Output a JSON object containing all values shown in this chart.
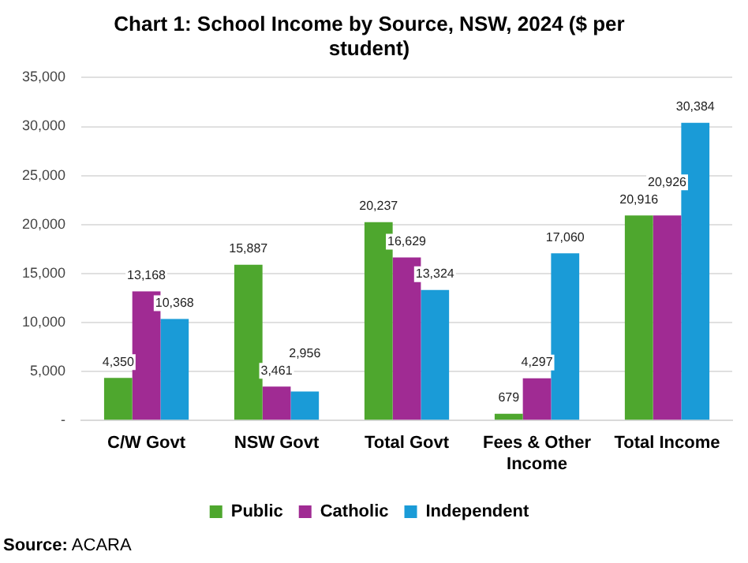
{
  "chart_data": {
    "type": "bar",
    "title": "Chart 1: School Income by Source, NSW, 2024 ($ per student)",
    "categories": [
      "C/W Govt",
      "NSW Govt",
      "Total Govt",
      "Fees & Other Income",
      "Total Income"
    ],
    "series": [
      {
        "name": "Public",
        "color": "#4ea72e",
        "values": [
          4350,
          15887,
          20237,
          679,
          20916
        ],
        "value_labels": [
          "4,350",
          "15,887",
          "20,237",
          "679",
          "20,916"
        ]
      },
      {
        "name": "Catholic",
        "color": "#a02b93",
        "values": [
          13168,
          3461,
          16629,
          4297,
          20926
        ],
        "value_labels": [
          "13,168",
          "3,461",
          "16,629",
          "4,297",
          "20,926"
        ]
      },
      {
        "name": "Independent",
        "color": "#1a9bd7",
        "values": [
          10368,
          2956,
          13324,
          17060,
          30384
        ],
        "value_labels": [
          "10,368",
          "2,956",
          "13,324",
          "17,060",
          "30,384"
        ]
      }
    ],
    "ylim": [
      0,
      35000
    ],
    "yticks": [
      {
        "value": 0,
        "label": "-"
      },
      {
        "value": 5000,
        "label": "5,000"
      },
      {
        "value": 10000,
        "label": "10,000"
      },
      {
        "value": 15000,
        "label": "15,000"
      },
      {
        "value": 20000,
        "label": "20,000"
      },
      {
        "value": 25000,
        "label": "25,000"
      },
      {
        "value": 30000,
        "label": "30,000"
      },
      {
        "value": 35000,
        "label": "35,000"
      }
    ],
    "grid": "y",
    "legend": "bottom",
    "annotations": [
      "Source: ACARA"
    ]
  }
}
